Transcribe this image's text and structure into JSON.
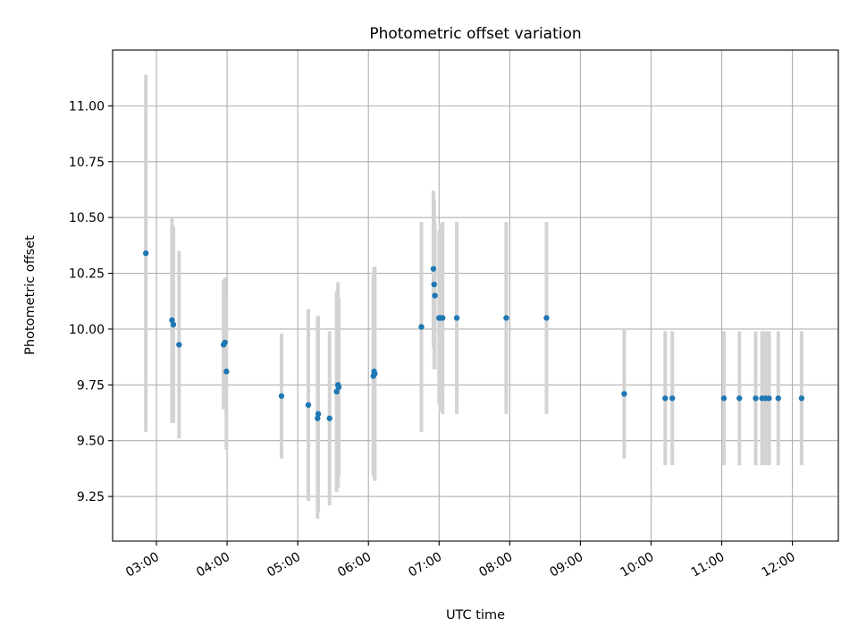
{
  "chart_data": {
    "type": "scatter",
    "title": "Photometric offset variation",
    "xlabel": "UTC time",
    "ylabel": "Photometric offset",
    "x_unit": "hours UTC",
    "xlim": [
      2.38,
      12.65
    ],
    "ylim": [
      9.05,
      11.25
    ],
    "x_ticks": [
      {
        "value": 3,
        "label": "03:00"
      },
      {
        "value": 4,
        "label": "04:00"
      },
      {
        "value": 5,
        "label": "05:00"
      },
      {
        "value": 6,
        "label": "06:00"
      },
      {
        "value": 7,
        "label": "07:00"
      },
      {
        "value": 8,
        "label": "08:00"
      },
      {
        "value": 9,
        "label": "09:00"
      },
      {
        "value": 10,
        "label": "10:00"
      },
      {
        "value": 11,
        "label": "11:00"
      },
      {
        "value": 12,
        "label": "12:00"
      }
    ],
    "y_ticks": [
      {
        "value": 9.25,
        "label": "9.25"
      },
      {
        "value": 9.5,
        "label": "9.50"
      },
      {
        "value": 9.75,
        "label": "9.75"
      },
      {
        "value": 10.0,
        "label": "10.00"
      },
      {
        "value": 10.25,
        "label": "10.25"
      },
      {
        "value": 10.5,
        "label": "10.50"
      },
      {
        "value": 10.75,
        "label": "10.75"
      },
      {
        "value": 11.0,
        "label": "11.00"
      }
    ],
    "grid": true,
    "point_color": "#1f77b4",
    "errorbar_color": "#d3d3d3",
    "points": [
      {
        "x": 2.85,
        "y": 10.34,
        "err": 0.8
      },
      {
        "x": 3.22,
        "y": 10.04,
        "err": 0.46
      },
      {
        "x": 3.24,
        "y": 10.02,
        "err": 0.44
      },
      {
        "x": 3.32,
        "y": 9.93,
        "err": 0.42
      },
      {
        "x": 3.95,
        "y": 9.93,
        "err": 0.29
      },
      {
        "x": 3.97,
        "y": 9.94,
        "err": 0.29
      },
      {
        "x": 3.99,
        "y": 9.81,
        "err": 0.35
      },
      {
        "x": 4.77,
        "y": 9.7,
        "err": 0.28
      },
      {
        "x": 5.15,
        "y": 9.66,
        "err": 0.43
      },
      {
        "x": 5.28,
        "y": 9.6,
        "err": 0.45
      },
      {
        "x": 5.29,
        "y": 9.62,
        "err": 0.44
      },
      {
        "x": 5.45,
        "y": 9.6,
        "err": 0.39
      },
      {
        "x": 5.55,
        "y": 9.72,
        "err": 0.45
      },
      {
        "x": 5.57,
        "y": 9.75,
        "err": 0.46
      },
      {
        "x": 5.58,
        "y": 9.74,
        "err": 0.4
      },
      {
        "x": 6.07,
        "y": 9.79,
        "err": 0.45
      },
      {
        "x": 6.08,
        "y": 9.81,
        "err": 0.47
      },
      {
        "x": 6.09,
        "y": 9.8,
        "err": 0.48
      },
      {
        "x": 6.75,
        "y": 10.01,
        "err": 0.47
      },
      {
        "x": 6.92,
        "y": 10.27,
        "err": 0.35
      },
      {
        "x": 6.93,
        "y": 10.2,
        "err": 0.38
      },
      {
        "x": 6.94,
        "y": 10.15,
        "err": 0.33
      },
      {
        "x": 7.0,
        "y": 10.05,
        "err": 0.39
      },
      {
        "x": 7.02,
        "y": 10.05,
        "err": 0.42
      },
      {
        "x": 7.05,
        "y": 10.05,
        "err": 0.43
      },
      {
        "x": 7.25,
        "y": 10.05,
        "err": 0.43
      },
      {
        "x": 7.95,
        "y": 10.05,
        "err": 0.43
      },
      {
        "x": 8.52,
        "y": 10.05,
        "err": 0.43
      },
      {
        "x": 9.62,
        "y": 9.71,
        "err": 0.29
      },
      {
        "x": 10.2,
        "y": 9.69,
        "err": 0.3
      },
      {
        "x": 10.3,
        "y": 9.69,
        "err": 0.3
      },
      {
        "x": 11.03,
        "y": 9.69,
        "err": 0.3
      },
      {
        "x": 11.25,
        "y": 9.69,
        "err": 0.3
      },
      {
        "x": 11.48,
        "y": 9.69,
        "err": 0.3
      },
      {
        "x": 11.57,
        "y": 9.69,
        "err": 0.3
      },
      {
        "x": 11.62,
        "y": 9.69,
        "err": 0.3
      },
      {
        "x": 11.67,
        "y": 9.69,
        "err": 0.3
      },
      {
        "x": 11.8,
        "y": 9.69,
        "err": 0.3
      },
      {
        "x": 12.13,
        "y": 9.69,
        "err": 0.3
      }
    ]
  }
}
